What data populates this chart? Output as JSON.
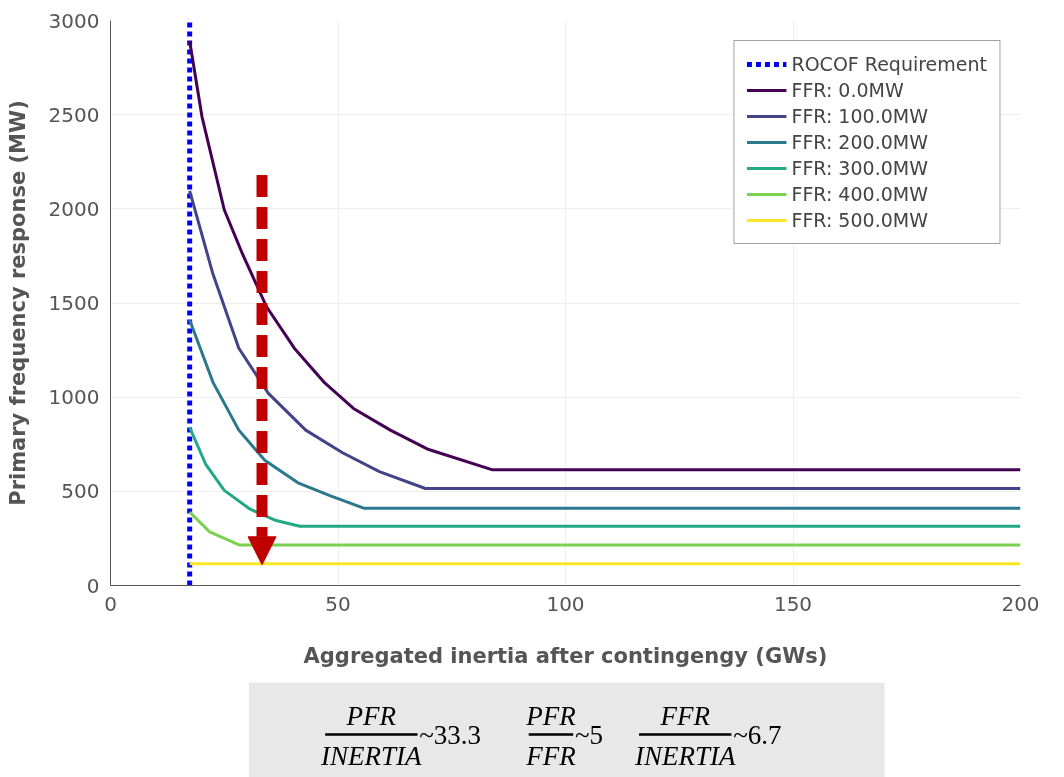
{
  "chart_data": {
    "type": "line",
    "xlabel": "Aggregated inertia after contingengy (GWs)",
    "ylabel": "Primary frequency response (MW)",
    "xlim": [
      0,
      200
    ],
    "ylim": [
      0,
      3000
    ],
    "xticks": [
      0,
      50,
      100,
      150,
      200
    ],
    "yticks": [
      0,
      500,
      1000,
      1500,
      2000,
      2500,
      3000
    ],
    "grid": true,
    "legend": "top right",
    "line_style": "solid",
    "marker": "none",
    "series": [
      {
        "name": "ROCOF Requirement",
        "color": "#0000ff",
        "line_style": "dotted",
        "x": [
          17.4,
          17.4
        ],
        "values": [
          0,
          3000
        ]
      },
      {
        "name": "FFR: 0.0MW",
        "color": "#440154",
        "x": [
          17.4,
          20.1,
          25,
          29.1,
          34.3,
          40.4,
          46.9,
          53.4,
          61.5,
          69.6,
          83.8,
          200
        ],
        "values": [
          2890,
          2490,
          1995,
          1755,
          1480,
          1260,
          1080,
          940,
          825,
          725,
          615,
          615
        ]
      },
      {
        "name": "FFR: 100.0MW",
        "color": "#414487",
        "x": [
          17.4,
          22.5,
          28.2,
          34.7,
          42.9,
          51,
          59.1,
          69.2,
          200
        ],
        "values": [
          2095,
          1655,
          1260,
          1020,
          825,
          705,
          605,
          515,
          515
        ]
      },
      {
        "name": "FFR: 200.0MW",
        "color": "#2a788e",
        "x": [
          17.4,
          22.5,
          28.2,
          33.9,
          41.2,
          48.5,
          55.8,
          200
        ],
        "values": [
          1410,
          1080,
          825,
          665,
          545,
          475,
          410,
          410
        ]
      },
      {
        "name": "FFR: 300.0MW",
        "color": "#22a884",
        "x": [
          17.4,
          20.9,
          25,
          30.7,
          36.4,
          41.6,
          200
        ],
        "values": [
          840,
          645,
          505,
          405,
          345,
          315,
          315
        ]
      },
      {
        "name": "FFR: 400.0MW",
        "color": "#7ad151",
        "x": [
          17.4,
          21.8,
          28.4,
          200
        ],
        "values": [
          390,
          285,
          215,
          215
        ]
      },
      {
        "name": "FFR: 500.0MW",
        "color": "#fde725",
        "x": [
          17.4,
          200
        ],
        "values": [
          115,
          115
        ]
      }
    ],
    "annotations": [
      "PFR",
      "INERTIA",
      "~33.3",
      "PFR",
      "FFR",
      "~5",
      "FFR",
      "INERTIA",
      "~6.7"
    ]
  }
}
